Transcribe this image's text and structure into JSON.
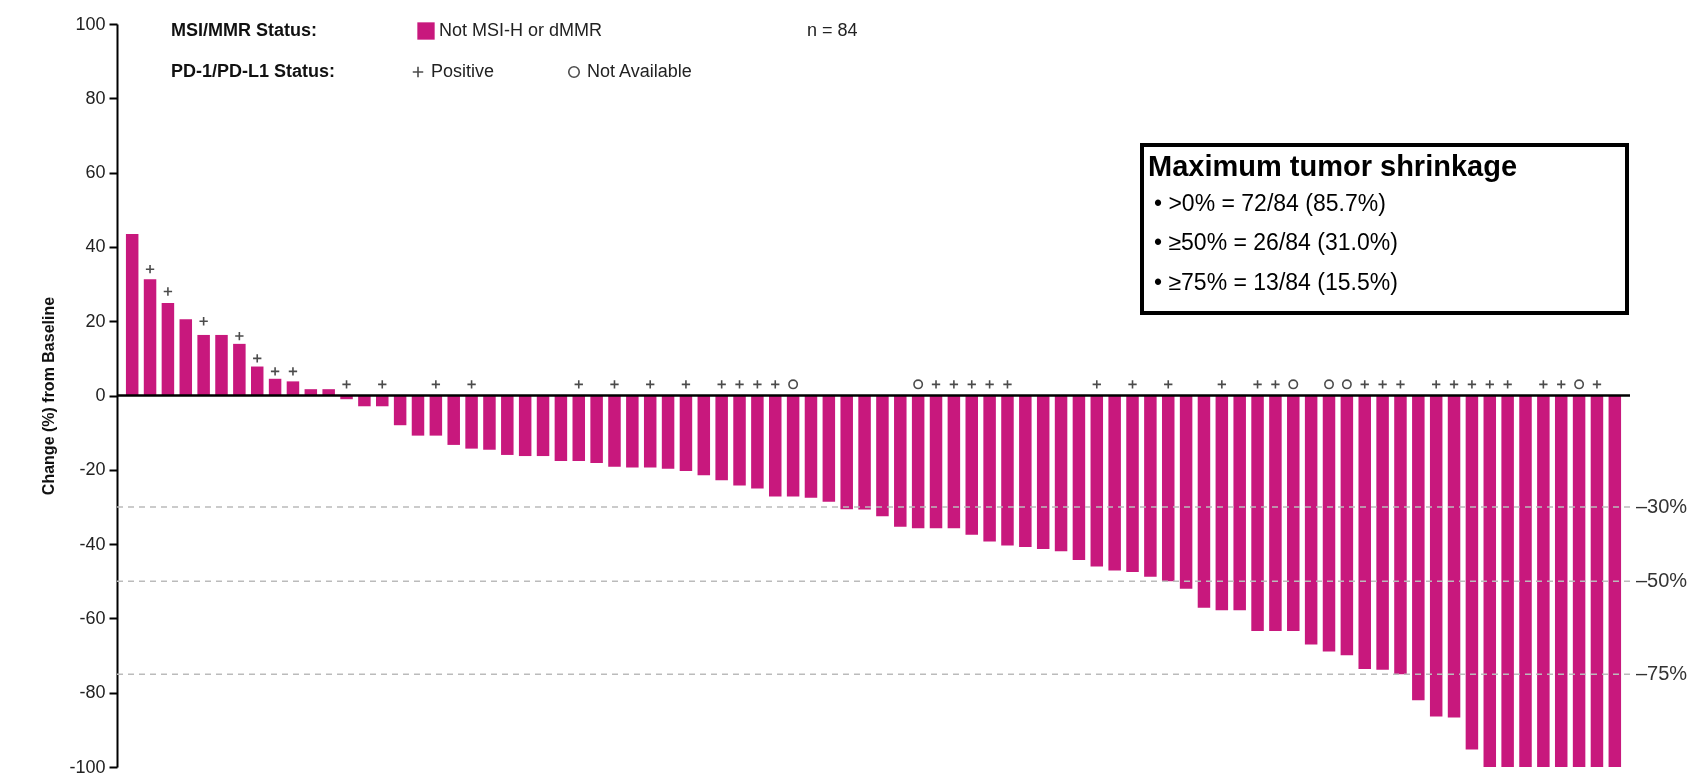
{
  "chart_data": {
    "type": "bar",
    "ylabel": "Change (%) from Baseline",
    "legend_title": "MSI/MMR Status:",
    "categories": [
      null,
      null,
      null,
      null,
      null,
      null,
      null,
      null,
      null,
      null,
      null,
      null,
      null,
      null,
      null,
      null,
      null,
      null,
      null,
      null,
      null,
      null,
      null,
      null,
      null,
      null,
      null,
      null,
      null,
      null,
      null,
      null,
      null,
      null,
      null,
      null,
      null,
      null,
      null,
      null,
      null,
      null,
      null,
      null,
      null,
      null,
      null,
      null,
      null,
      null,
      null,
      null,
      null,
      null,
      null,
      null,
      null,
      null,
      null,
      null,
      null,
      null,
      null,
      null,
      null,
      null,
      null,
      null,
      null,
      null,
      null,
      null,
      null,
      null,
      null,
      null,
      null,
      null,
      null,
      null,
      null,
      null,
      null,
      null
    ],
    "ylim": [
      -100,
      100
    ],
    "yticks": [
      -100,
      -80,
      -60,
      -40,
      -20,
      0,
      20,
      40,
      60,
      80,
      100
    ],
    "tick_labels": "y",
    "legend": "top left",
    "series": [
      {
        "name": "Not MSI-H or dMMR",
        "color": "#c8187d",
        "values": [
          43.5,
          31.3,
          24.9,
          20.5,
          16.3,
          16.3,
          13.9,
          7.8,
          4.5,
          3.8,
          1.7,
          1.7,
          -1.0,
          -2.9,
          -2.9,
          -8.0,
          -10.8,
          -10.8,
          -13.3,
          -14.3,
          -14.6,
          -16.0,
          -16.3,
          -16.3,
          -17.6,
          -17.6,
          -18.2,
          -19.2,
          -19.4,
          -19.4,
          -19.7,
          -20.3,
          -21.5,
          -22.8,
          -24.2,
          -25.0,
          -27.2,
          -27.2,
          -27.5,
          -28.6,
          -30.6,
          -30.7,
          -32.5,
          -35.3,
          -35.7,
          -35.7,
          -35.7,
          -37.5,
          -39.3,
          -40.4,
          -40.8,
          -41.3,
          -41.9,
          -44.3,
          -46.0,
          -47.1,
          -47.5,
          -48.8,
          -50,
          -52,
          -57.1,
          -57.8,
          -57.8,
          -63.4,
          -63.4,
          -63.4,
          -67.0,
          -68.9,
          -69.9,
          -73.6,
          -73.8,
          -75,
          -82.0,
          -86.4,
          -86.7,
          -95.3,
          -100,
          -100,
          -100,
          -100,
          -100,
          -100,
          -100,
          -100
        ]
      },
      {
        "name": "Positive",
        "type": "scatter",
        "marker": "cross",
        "color": "#000000",
        "values": [
          null,
          34,
          28,
          null,
          20,
          null,
          16,
          10,
          6.5,
          6.5,
          null,
          null,
          3,
          null,
          3,
          null,
          null,
          3,
          null,
          3,
          null,
          null,
          null,
          null,
          null,
          3,
          null,
          3,
          null,
          3,
          null,
          3,
          null,
          3,
          3,
          3,
          3,
          null,
          null,
          null,
          null,
          null,
          null,
          null,
          null,
          3,
          3,
          3,
          3,
          3,
          null,
          null,
          null,
          null,
          3,
          null,
          3,
          null,
          3,
          null,
          null,
          3,
          null,
          3,
          3,
          null,
          null,
          null,
          null,
          3,
          3,
          3,
          null,
          3,
          3,
          3,
          3,
          3,
          null,
          3,
          3,
          null,
          3,
          null
        ]
      },
      {
        "name": "Not Available",
        "type": "scatter",
        "marker": "circle",
        "color": "#000000",
        "values": [
          null,
          null,
          null,
          null,
          null,
          null,
          null,
          null,
          null,
          null,
          null,
          null,
          null,
          null,
          null,
          null,
          null,
          null,
          null,
          null,
          null,
          null,
          null,
          null,
          null,
          null,
          null,
          null,
          null,
          null,
          null,
          null,
          null,
          null,
          null,
          null,
          null,
          3,
          null,
          null,
          null,
          null,
          null,
          null,
          3,
          null,
          null,
          null,
          null,
          null,
          null,
          null,
          null,
          null,
          null,
          null,
          null,
          null,
          null,
          null,
          null,
          null,
          null,
          null,
          null,
          3,
          null,
          3,
          3,
          null,
          null,
          null,
          null,
          null,
          null,
          null,
          null,
          null,
          null,
          null,
          null,
          3,
          null,
          null
        ]
      }
    ],
    "ref_lines": [
      {
        "axis": "y",
        "value": 0,
        "color": "#000000",
        "line_style": "solid"
      },
      {
        "axis": "y",
        "value": -30,
        "label": "–30%",
        "color": "#bbbbbb",
        "line_style": "dashed"
      },
      {
        "axis": "y",
        "value": -50,
        "label": "–50%",
        "color": "#bbbbbb",
        "line_style": "dashed"
      },
      {
        "axis": "y",
        "value": -75,
        "label": "–75%",
        "color": "#bbbbbb",
        "line_style": "dashed"
      }
    ],
    "annotations": [
      "n = 84",
      "PD-1/PD-L1 Status:",
      "Maximum tumor shrinkage",
      "• >0% = 72/84 (85.7%)",
      "• ≥50% = 26/84 (31.0%)",
      "• ≥75% = 13/84 (15.5%)"
    ]
  }
}
